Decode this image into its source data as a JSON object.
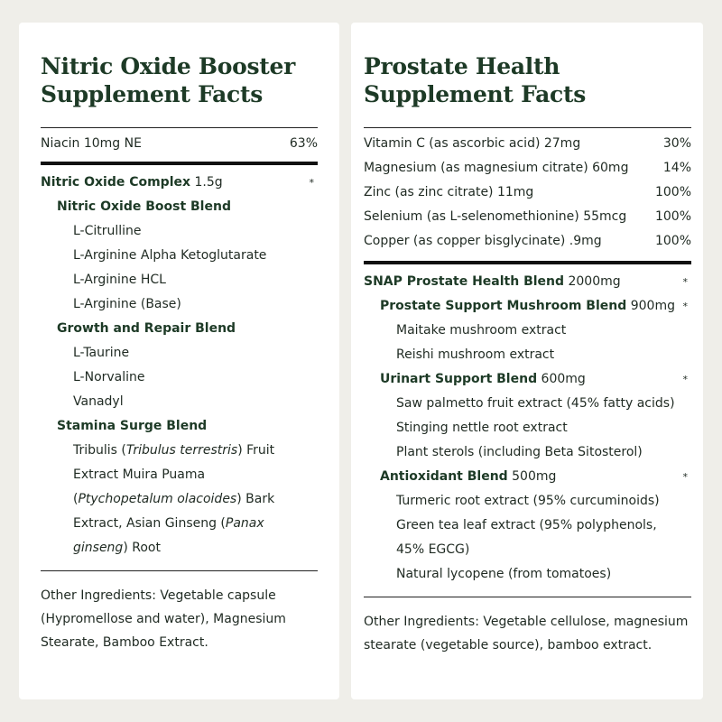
{
  "left": {
    "title_line1": "Nitric Oxide Booster",
    "title_line2": "Supplement Facts",
    "vitamins": [
      {
        "name": "Niacin 10mg NE",
        "dv": "63%"
      }
    ],
    "complex": {
      "name": "Nitric Oxide Complex",
      "amount": " 1.5g",
      "dv": "*"
    },
    "blends": [
      {
        "name": "Nitric Oxide Boost Blend",
        "items": [
          "L-Citrulline",
          "L-Arginine Alpha Ketoglutarate",
          "L-Arginine HCL",
          "L-Arginine (Base)"
        ]
      },
      {
        "name": "Growth and Repair Blend",
        "items": [
          "L-Taurine",
          "L-Norvaline",
          "Vanadyl"
        ]
      },
      {
        "name": "Stamina Surge Blend",
        "parts": [
          "Tribulis (",
          "Tribulus terrestris",
          ") Fruit Extract Muira Puama (",
          "Ptychopetalum olacoides",
          ") Bark Extract, Asian Ginseng (",
          "Panax ginseng",
          ") Root"
        ]
      }
    ],
    "other": "Other Ingredients: Vegetable capsule (Hypromellose and water), Magnesium Stearate, Bamboo Extract."
  },
  "right": {
    "title_line1": "Prostate Health",
    "title_line2": "Supplement Facts",
    "vitamins": [
      {
        "name": "Vitamin C (as ascorbic acid) 27mg",
        "dv": "30%"
      },
      {
        "name": "Magnesium (as magnesium citrate) 60mg",
        "dv": "14%"
      },
      {
        "name": "Zinc (as zinc citrate) 11mg",
        "dv": "100%"
      },
      {
        "name": "Selenium (as L-selenomethionine) 55mcg",
        "dv": "100%"
      },
      {
        "name": "Copper (as copper bisglycinate) .9mg",
        "dv": "100%"
      }
    ],
    "complex": {
      "name": "SNAP Prostate Health Blend",
      "amount": " 2000mg",
      "dv": "*"
    },
    "blends": [
      {
        "name": "Prostate Support Mushroom Blend",
        "amount": " 900mg",
        "dv": "*",
        "items": [
          "Maitake mushroom extract",
          "Reishi mushroom extract"
        ]
      },
      {
        "name": "Urinart Support Blend",
        "amount": " 600mg",
        "dv": "*",
        "items": [
          "Saw palmetto fruit extract (45% fatty acids)",
          "Stinging nettle root extract",
          "Plant sterols (including Beta Sitosterol)"
        ]
      },
      {
        "name": "Antioxidant Blend",
        "amount": " 500mg",
        "dv": "*",
        "items": [
          "Turmeric root extract (95% curcuminoids)",
          "Green tea leaf extract (95% polyphenols, 45% EGCG)",
          "Natural lycopene (from tomatoes)"
        ]
      }
    ],
    "other": "Other Ingredients: Vegetable cellulose, magnesium stearate (vegetable source), bamboo extract."
  }
}
